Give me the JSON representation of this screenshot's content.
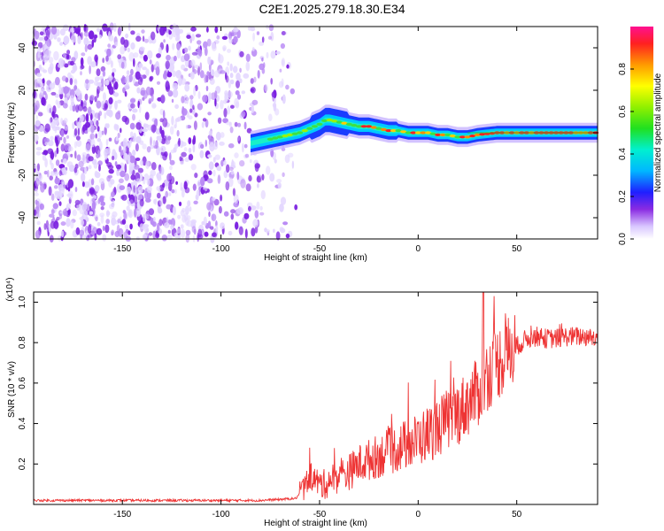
{
  "title": "C2E1.2025.279.18.30.E34",
  "colors": {
    "axis": "#000000",
    "snr_line": "#ee3333",
    "spectrogram_noise": "#7a1fe0",
    "ridge_low": "#1a3cff",
    "ridge_mid": "#19f0c8",
    "ridge_high": "#ff2020"
  },
  "chart_data": [
    {
      "type": "heatmap",
      "name": "spectrogram",
      "xlabel": "Height of straight line (km)",
      "ylabel": "Frequency (Hz)",
      "xlim": [
        -195,
        91
      ],
      "ylim": [
        -50,
        50
      ],
      "x_ticks": [
        -150,
        -100,
        -50,
        0,
        50
      ],
      "y_ticks": [
        -40,
        -20,
        0,
        20,
        40
      ],
      "grid": false,
      "noise_region_x": [
        -195,
        -62
      ],
      "ridge": {
        "x": [
          -85,
          -80,
          -75,
          -70,
          -65,
          -60,
          -55,
          -50,
          -47,
          -45,
          -40,
          -35,
          -30,
          -25,
          -20,
          -15,
          -10,
          -5,
          0,
          5,
          10,
          15,
          20,
          25,
          30,
          40,
          50,
          60,
          70,
          80,
          91
        ],
        "y": [
          -5,
          -4,
          -3,
          -2,
          -1,
          0,
          2,
          4,
          6,
          6,
          5,
          4,
          3,
          3,
          2,
          1,
          1,
          0,
          0,
          0,
          -1,
          -1,
          -2,
          -2,
          -1,
          0,
          0,
          0,
          0,
          0,
          0
        ]
      },
      "colorbar": {
        "label": "Normalized spectral amplitude",
        "range": [
          0,
          1
        ],
        "ticks": [
          0.0,
          0.2,
          0.4,
          0.6,
          0.8
        ],
        "tick_labels": [
          "0.0",
          "0.2",
          "0.4",
          "0.6",
          "0.8"
        ]
      }
    },
    {
      "type": "line",
      "name": "snr",
      "xlabel": "Height of straight line (km)",
      "ylabel": "SNR (10 * v/v)",
      "y_multiplier_label": "(x10⁴)",
      "xlim": [
        -195,
        91
      ],
      "ylim": [
        0,
        1.05
      ],
      "x_ticks": [
        -150,
        -100,
        -50,
        0,
        50
      ],
      "y_ticks": [
        0.2,
        0.4,
        0.6,
        0.8,
        1.0
      ],
      "y_tick_labels": [
        "0.2",
        "0.4",
        "0.6",
        "0.8",
        "1.0"
      ],
      "grid": false,
      "series": [
        {
          "values_x": [
            -195,
            -180,
            -160,
            -140,
            -120,
            -100,
            -80,
            -70,
            -62,
            -58,
            -55,
            -52,
            -50,
            -47,
            -45,
            -40,
            -35,
            -30,
            -25,
            -20,
            -15,
            -10,
            -5,
            0,
            5,
            10,
            15,
            20,
            25,
            30,
            33,
            35,
            40,
            45,
            50,
            55,
            60,
            65,
            70,
            75,
            80,
            85,
            91
          ],
          "values_y": [
            0.02,
            0.02,
            0.02,
            0.02,
            0.02,
            0.02,
            0.02,
            0.025,
            0.03,
            0.08,
            0.14,
            0.12,
            0.1,
            0.1,
            0.12,
            0.14,
            0.16,
            0.2,
            0.22,
            0.24,
            0.26,
            0.28,
            0.3,
            0.32,
            0.35,
            0.38,
            0.42,
            0.45,
            0.5,
            0.55,
            0.6,
            0.64,
            0.7,
            0.74,
            0.78,
            0.82,
            0.83,
            0.82,
            0.82,
            0.83,
            0.83,
            0.83,
            0.82
          ]
        }
      ]
    }
  ]
}
